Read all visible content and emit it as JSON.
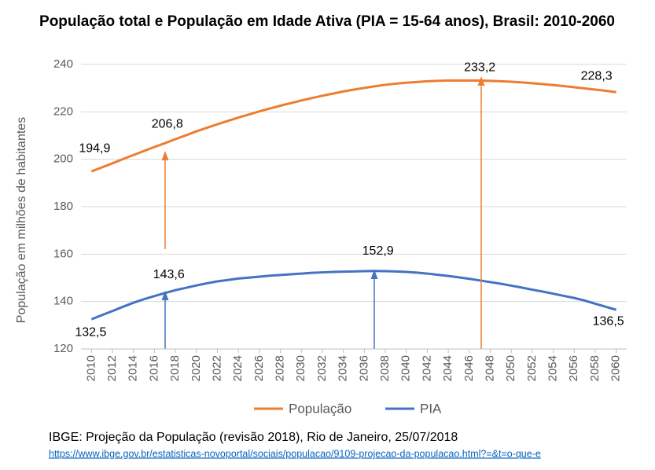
{
  "chart_data": {
    "type": "line",
    "title": "População total e População em Idade Ativa (PIA = 15-64 anos), Brasil: 2010-2060",
    "y_label": "População em milhões de habitantes",
    "x": [
      2010,
      2011,
      2012,
      2013,
      2014,
      2015,
      2016,
      2017,
      2018,
      2019,
      2020,
      2021,
      2022,
      2023,
      2024,
      2025,
      2026,
      2027,
      2028,
      2029,
      2030,
      2031,
      2032,
      2033,
      2034,
      2035,
      2036,
      2037,
      2038,
      2039,
      2040,
      2041,
      2042,
      2043,
      2044,
      2045,
      2046,
      2047,
      2048,
      2049,
      2050,
      2051,
      2052,
      2053,
      2054,
      2055,
      2056,
      2057,
      2058,
      2059,
      2060
    ],
    "series": [
      {
        "name": "População",
        "color": "#ed7d31",
        "values": [
          194.9,
          196.6,
          198.3,
          200.1,
          201.8,
          203.5,
          205.2,
          206.8,
          208.5,
          210.1,
          211.8,
          213.3,
          214.8,
          216.2,
          217.6,
          218.9,
          220.2,
          221.4,
          222.6,
          223.7,
          224.8,
          225.8,
          226.8,
          227.7,
          228.6,
          229.4,
          230.1,
          230.8,
          231.4,
          231.9,
          232.3,
          232.6,
          232.9,
          233.1,
          233.2,
          233.2,
          233.2,
          233.2,
          233.1,
          232.9,
          232.7,
          232.4,
          232.1,
          231.7,
          231.3,
          230.9,
          230.4,
          229.9,
          229.4,
          228.9,
          228.3
        ],
        "value_labels": [
          "194,9",
          null,
          null,
          null,
          null,
          null,
          null,
          "206,8",
          null,
          null,
          null,
          null,
          null,
          null,
          null,
          null,
          null,
          null,
          null,
          null,
          null,
          null,
          null,
          null,
          null,
          null,
          null,
          null,
          null,
          null,
          null,
          null,
          null,
          null,
          null,
          null,
          null,
          "233,2",
          null,
          null,
          null,
          null,
          null,
          null,
          null,
          null,
          null,
          null,
          null,
          null,
          "228,3"
        ]
      },
      {
        "name": "PIA",
        "color": "#4472c4",
        "values": [
          132.5,
          134.3,
          136.0,
          137.8,
          139.5,
          141.0,
          142.3,
          143.6,
          144.8,
          145.8,
          146.8,
          147.7,
          148.5,
          149.1,
          149.7,
          150.1,
          150.5,
          150.9,
          151.2,
          151.5,
          151.8,
          152.1,
          152.3,
          152.5,
          152.6,
          152.7,
          152.8,
          152.9,
          152.8,
          152.7,
          152.5,
          152.2,
          151.8,
          151.3,
          150.8,
          150.2,
          149.6,
          148.9,
          148.2,
          147.5,
          146.7,
          145.9,
          145.0,
          144.2,
          143.3,
          142.4,
          141.5,
          140.4,
          139.1,
          137.8,
          136.5
        ],
        "value_labels": [
          "132,5",
          null,
          null,
          null,
          null,
          null,
          null,
          "143,6",
          null,
          null,
          null,
          null,
          null,
          null,
          null,
          null,
          null,
          null,
          null,
          null,
          null,
          null,
          null,
          null,
          null,
          null,
          null,
          "152,9",
          null,
          null,
          null,
          null,
          null,
          null,
          null,
          null,
          null,
          null,
          null,
          null,
          null,
          null,
          null,
          null,
          null,
          null,
          null,
          null,
          null,
          null,
          "136,5"
        ]
      }
    ],
    "xlim": [
      2009,
      2061
    ],
    "xticks": [
      2010,
      2012,
      2014,
      2016,
      2018,
      2020,
      2022,
      2024,
      2026,
      2028,
      2030,
      2032,
      2034,
      2036,
      2038,
      2040,
      2042,
      2044,
      2046,
      2048,
      2050,
      2052,
      2054,
      2056,
      2058,
      2060
    ],
    "ylim": [
      120,
      240
    ],
    "yticks": [
      120,
      140,
      160,
      180,
      200,
      220,
      240
    ],
    "grid": true,
    "legend": "bottom",
    "source": "IBGE: Projeção da População (revisão 2018), Rio de Janeiro, 25/07/2018",
    "source_url": "https://www.ibge.gov.br/estatisticas-novoportal/sociais/populacao/9109-projecao-da-populacao.html?=&t=o-que-e"
  }
}
